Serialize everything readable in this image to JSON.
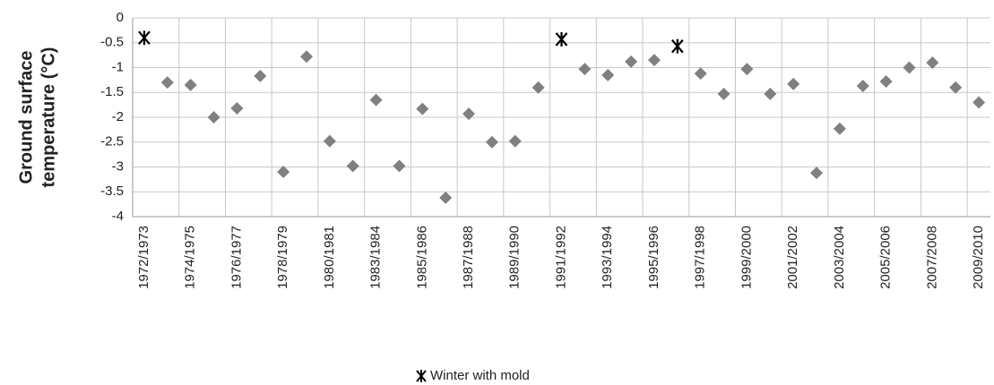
{
  "chart_data": {
    "type": "scatter",
    "y_label": [
      "Ground surface",
      "temperature (°C)"
    ],
    "categories": [
      "1972/1973",
      null,
      "1974/1975",
      null,
      "1976/1977",
      null,
      "1978/1979",
      null,
      "1980/1981",
      null,
      "1983/1984",
      null,
      "1985/1986",
      null,
      "1987/1988",
      null,
      "1989/1990",
      null,
      "1991/1992",
      null,
      "1993/1994",
      null,
      "1995/1996",
      null,
      "1997/1998",
      null,
      "1999/2000",
      null,
      "2001/2002",
      null,
      "2003/2004",
      null,
      "2005/2006",
      null,
      "2007/2008",
      null,
      "2009/2010"
    ],
    "series": [
      {
        "color": "#808080",
        "marker": "diamond",
        "values": [
          null,
          -1.3,
          -1.35,
          -2.0,
          -1.82,
          -1.17,
          -3.1,
          -0.78,
          -2.48,
          -2.98,
          -1.65,
          -2.98,
          -1.83,
          -3.62,
          -1.93,
          -2.5,
          -2.48,
          -1.4,
          null,
          -1.03,
          -1.15,
          -0.88,
          -0.85,
          null,
          -1.12,
          -1.53,
          -1.03,
          -1.53,
          -1.33,
          -3.12,
          -2.23,
          -1.37,
          -1.28,
          -1.0,
          -0.9,
          -1.4,
          -1.7
        ]
      },
      {
        "name": "Winter with mold",
        "color": "#000000",
        "marker": "asterisk",
        "values": [
          -0.4,
          null,
          null,
          null,
          null,
          null,
          null,
          null,
          null,
          null,
          null,
          null,
          null,
          null,
          null,
          null,
          null,
          null,
          -0.43,
          null,
          null,
          null,
          null,
          -0.57,
          null,
          null,
          null,
          null,
          null,
          null,
          null,
          null,
          null,
          null,
          null,
          null,
          null
        ]
      }
    ],
    "ylim": [
      -4,
      0
    ],
    "yticks": [
      0,
      -0.5,
      -1,
      -1.5,
      -2,
      -2.5,
      -3,
      -3.5,
      -4
    ],
    "grid": true
  }
}
